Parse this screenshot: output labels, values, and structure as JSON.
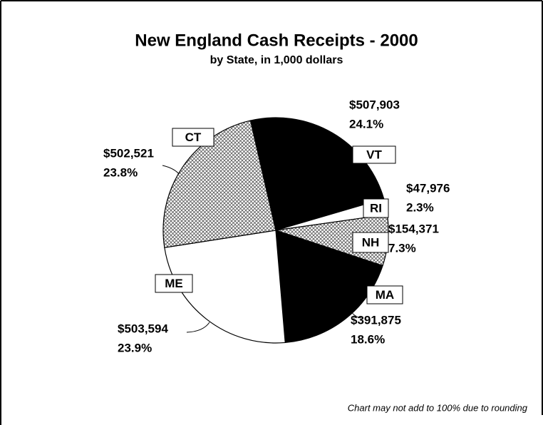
{
  "chart_data": {
    "type": "pie",
    "title": "New England Cash Receipts - 2000",
    "subtitle": "by State, in 1,000 dollars",
    "categories": [
      "VT",
      "RI",
      "NH",
      "MA",
      "ME",
      "CT"
    ],
    "values": [
      507903,
      47976,
      154371,
      391875,
      503594,
      502521
    ],
    "value_labels": [
      "$507,903",
      "$47,976",
      "$154,371",
      "$391,875",
      "$503,594",
      "$502,521"
    ],
    "percents": [
      24.1,
      2.3,
      7.3,
      18.6,
      23.9,
      23.8
    ],
    "percent_labels": [
      "24.1%",
      "2.3%",
      "7.3%",
      "18.6%",
      "23.9%",
      "23.8%"
    ],
    "fills": [
      "black",
      "white",
      "crosshatch",
      "black",
      "white",
      "crosshatch"
    ],
    "footnote": "Chart may not add to 100% due to rounding"
  }
}
